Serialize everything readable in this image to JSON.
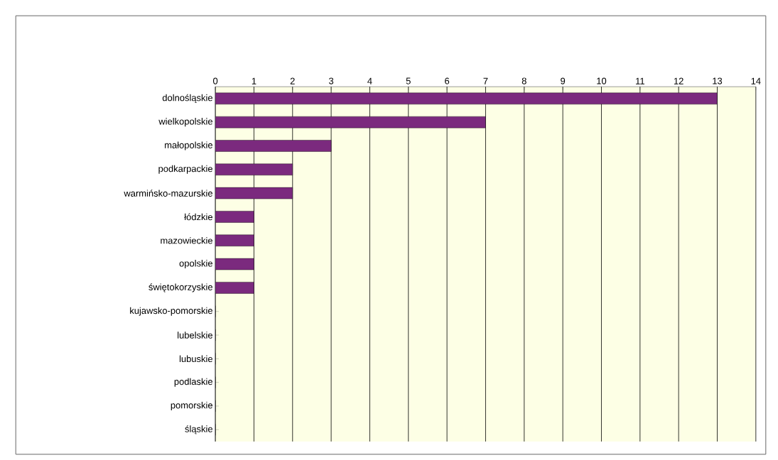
{
  "chart_data": {
    "type": "bar",
    "orientation": "horizontal",
    "categories": [
      "dolnośląskie",
      "wielkopolskie",
      "małopolskie",
      "podkarpackie",
      "warmińsko-mazurskie",
      "łódzkie",
      "mazowieckie",
      "opolskie",
      "świętokorzyskie",
      "kujawsko-pomorskie",
      "lubelskie",
      "lubuskie",
      "podlaskie",
      "pomorskie",
      "śląskie"
    ],
    "values": [
      13,
      7,
      3,
      2,
      2,
      1,
      1,
      1,
      1,
      0,
      0,
      0,
      0,
      0,
      0
    ],
    "color": "#7b2a7e",
    "xlim": [
      0,
      14
    ],
    "xticks": [
      0,
      1,
      2,
      3,
      4,
      5,
      6,
      7,
      8,
      9,
      10,
      11,
      12,
      13,
      14
    ],
    "grid": "x"
  }
}
